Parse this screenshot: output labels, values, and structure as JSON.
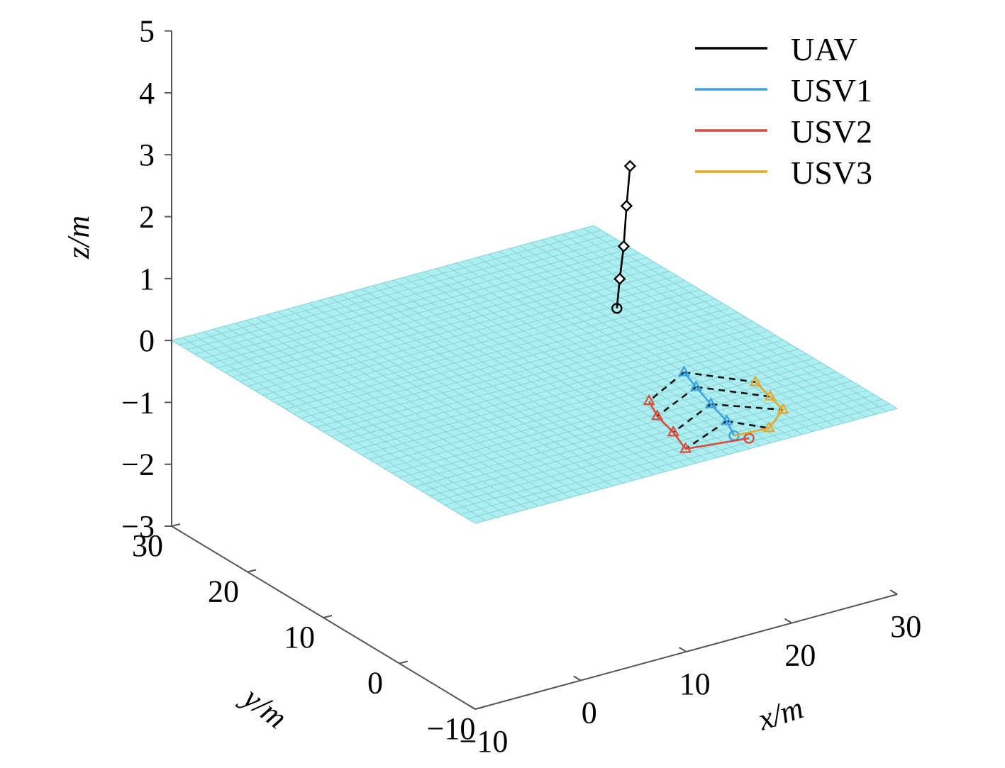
{
  "chart_data": {
    "type": "line",
    "title": "",
    "xlabel": "x/m",
    "ylabel": "y/m",
    "zlabel": "z/m",
    "xlim": [
      -10,
      30
    ],
    "ylim": [
      -10,
      30
    ],
    "zlim": [
      -3,
      5
    ],
    "x_ticks": [
      "−10",
      "0",
      "10",
      "20",
      "30"
    ],
    "y_ticks": [
      "−10",
      "0",
      "10",
      "20",
      "30"
    ],
    "z_ticks": [
      "−3",
      "−2",
      "−1",
      "0",
      "1",
      "2",
      "3",
      "4",
      "5"
    ],
    "legend_position": "top-right",
    "water_plane_color": "#a9eef0",
    "series": [
      {
        "name": "UAV",
        "color": "#000000",
        "marker": "diamond",
        "points": [
          [
            14.5,
            5.4,
            1.2
          ],
          [
            15.2,
            6.0,
            1.6
          ],
          [
            16.3,
            7.0,
            2.0
          ],
          [
            17.5,
            8.3,
            2.5
          ],
          [
            18.7,
            9.5,
            3.0
          ]
        ],
        "start_marker": "circle"
      },
      {
        "name": "USV1",
        "color": "#3fa2e0",
        "marker": "triangle",
        "points": [
          [
            16.4,
            -7.4,
            0
          ],
          [
            17.5,
            -4.9,
            0
          ],
          [
            18.3,
            -1.7,
            0
          ],
          [
            19.2,
            1.5,
            0
          ],
          [
            20.0,
            4.2,
            0
          ]
        ],
        "start_marker": "circle"
      },
      {
        "name": "USV2",
        "color": "#d94c3c",
        "marker": "triangle",
        "points": [
          [
            17.1,
            -8.4,
            0
          ],
          [
            11.8,
            -7.4,
            0
          ],
          [
            12.8,
            -4.4,
            0
          ],
          [
            13.5,
            -1.3,
            0
          ],
          [
            14.6,
            1.3,
            0
          ]
        ],
        "start_marker": "circle"
      },
      {
        "name": "USV3",
        "color": "#e6a82a",
        "marker": "triangle",
        "points": [
          [
            16.4,
            -7.4,
            0
          ],
          [
            19.5,
            -7.7,
            0
          ],
          [
            22.4,
            -5.5,
            0
          ],
          [
            23.0,
            -3.0,
            0
          ],
          [
            23.6,
            -0.2,
            0
          ]
        ],
        "start_marker": "none"
      }
    ],
    "formation_links": "dashed black lines connecting USV1, USV2, USV3 at each sampled step"
  }
}
